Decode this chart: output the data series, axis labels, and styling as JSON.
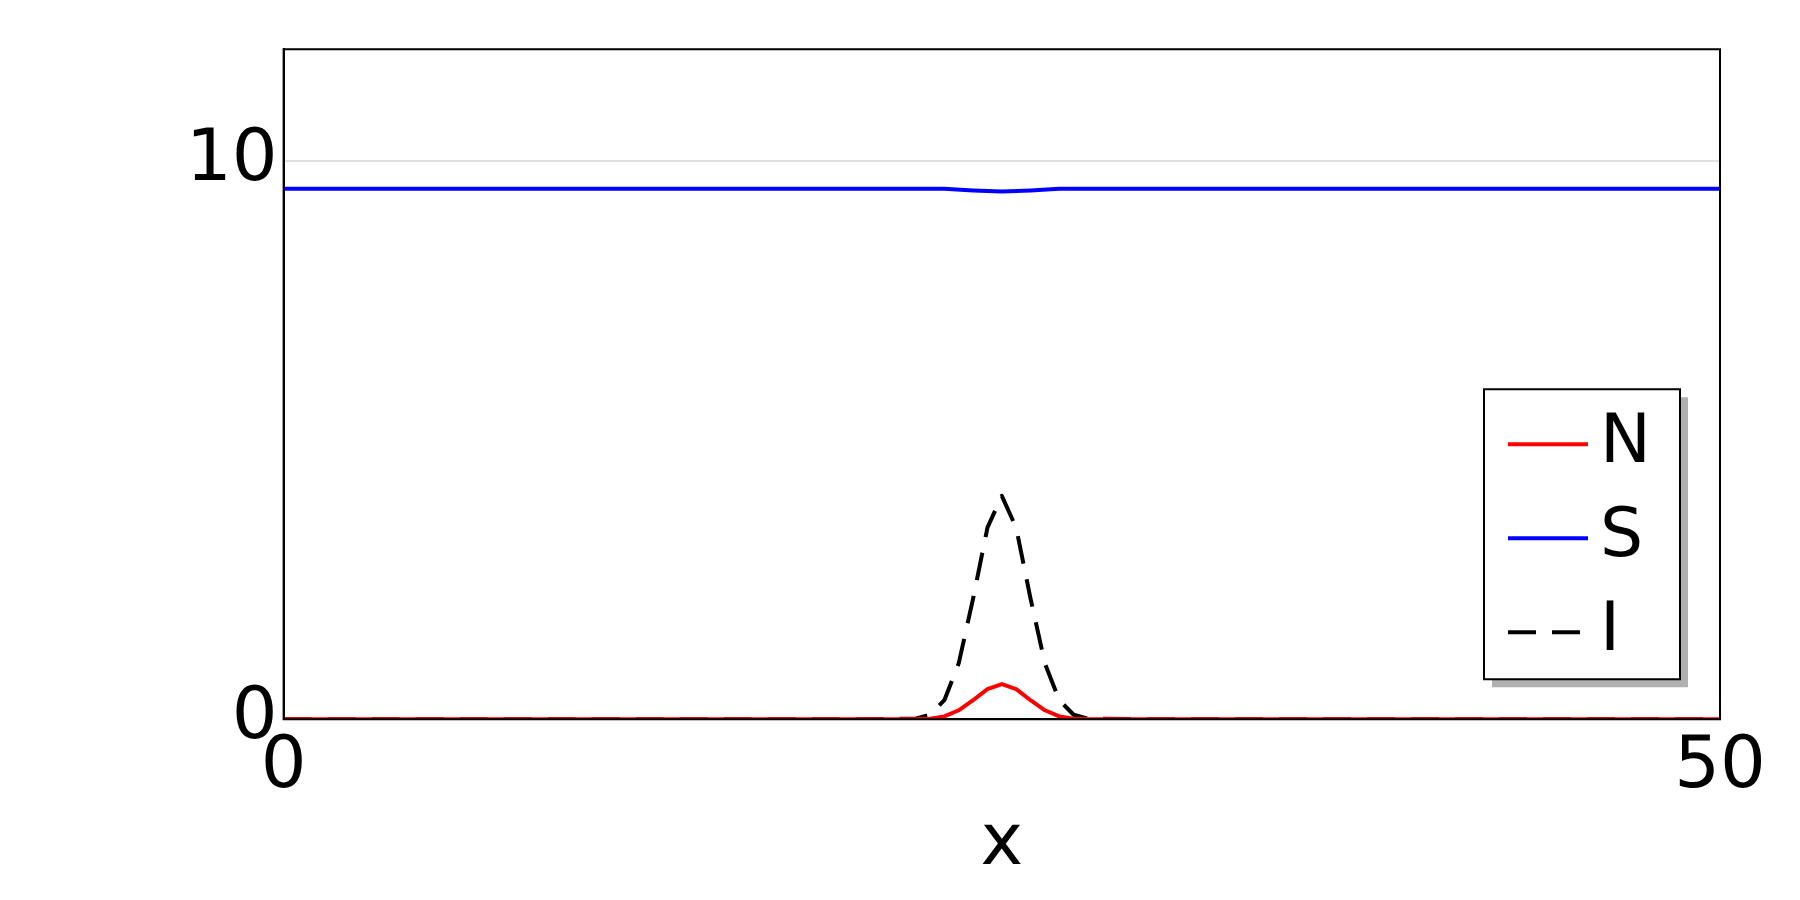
{
  "chart_data": {
    "type": "line",
    "xlabel": "x",
    "xlim": [
      0,
      50
    ],
    "xticks": [
      0,
      50
    ],
    "ylim": [
      0,
      12
    ],
    "yticks": [
      0,
      10
    ],
    "grid": true,
    "legend": "bottom right",
    "marker": "none",
    "series": [
      {
        "name": "N",
        "color": "#ff0000",
        "line_style": "solid",
        "x": [
          0,
          20,
          22,
          22.5,
          23,
          23.5,
          24,
          24.5,
          25,
          25.5,
          26,
          26.5,
          27,
          27.5,
          28,
          30,
          50
        ],
        "values": [
          0,
          0,
          0,
          0.01,
          0.05,
          0.16,
          0.34,
          0.54,
          0.63,
          0.54,
          0.34,
          0.16,
          0.05,
          0.01,
          0,
          0,
          0
        ]
      },
      {
        "name": "S",
        "color": "#0000ff",
        "line_style": "solid",
        "x": [
          0,
          23,
          24,
          25,
          26,
          27,
          50
        ],
        "values": [
          9.5,
          9.5,
          9.47,
          9.45,
          9.47,
          9.5,
          9.5
        ]
      },
      {
        "name": "I",
        "color": "#000000",
        "line_style": "dashed",
        "x": [
          0,
          20,
          22,
          22.5,
          23,
          23.5,
          24,
          24.5,
          25,
          25.5,
          26,
          26.5,
          27,
          27.5,
          28,
          30,
          50
        ],
        "values": [
          0,
          0,
          0.01,
          0.08,
          0.34,
          1.0,
          2.16,
          3.43,
          4,
          3.43,
          2.16,
          1.0,
          0.34,
          0.08,
          0.01,
          0,
          0
        ]
      }
    ]
  }
}
